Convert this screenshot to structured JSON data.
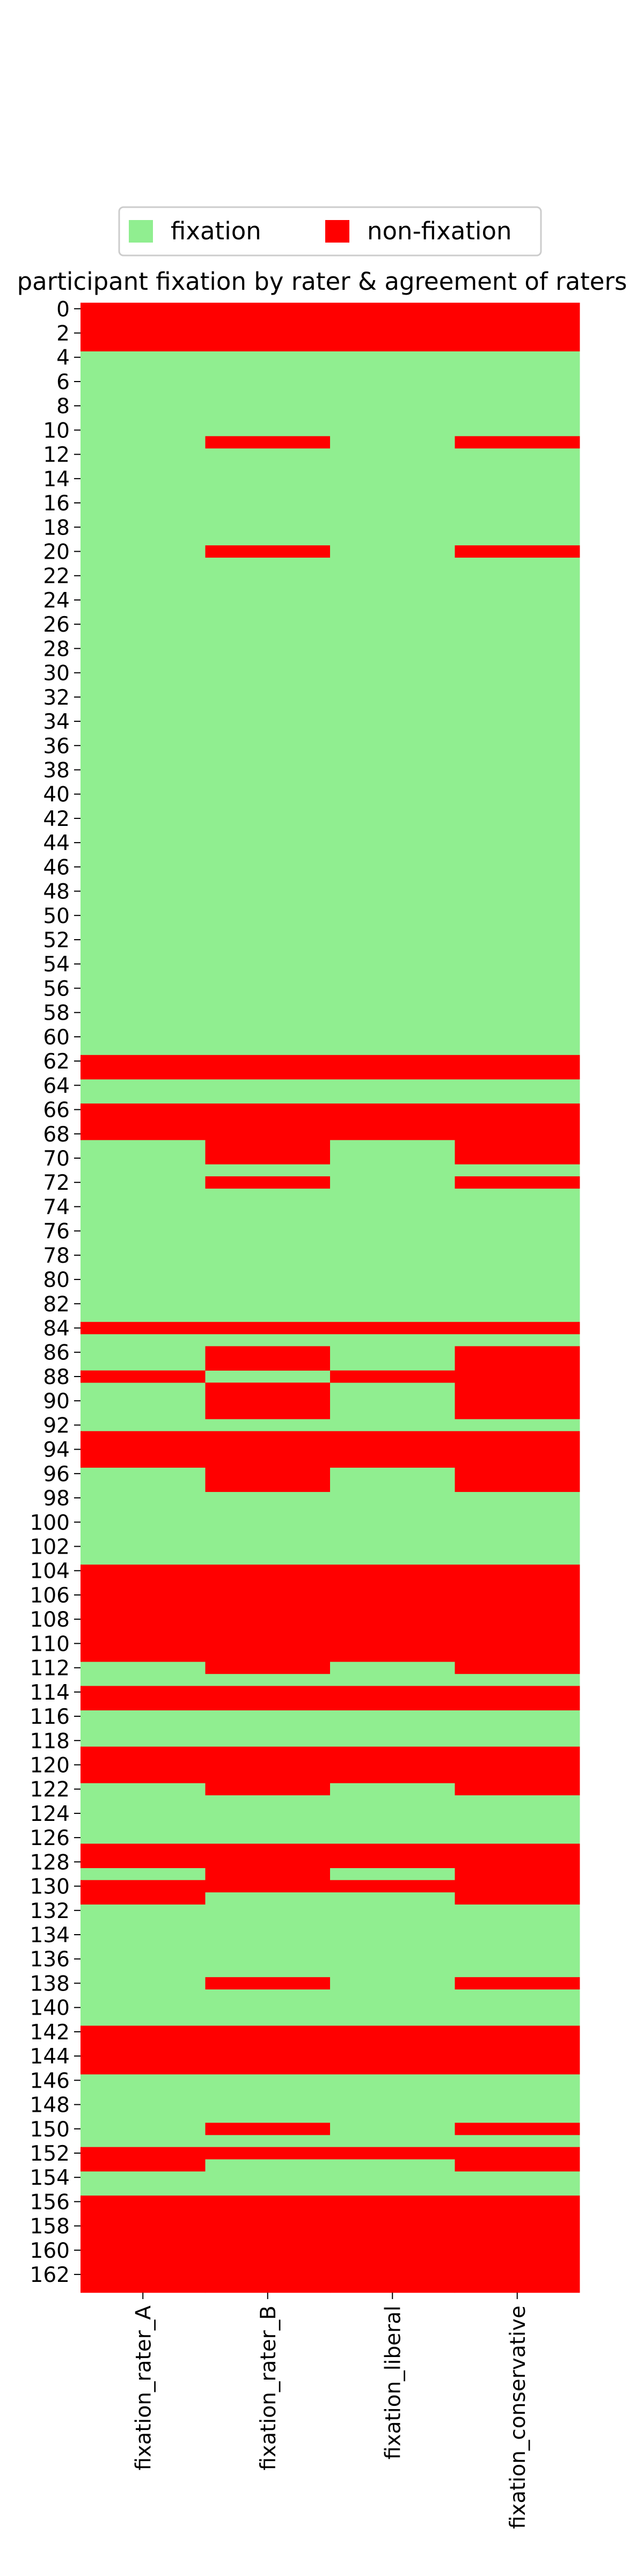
{
  "chart_data": {
    "type": "heatmap",
    "title": "participant fixation by rater & agreement of raters",
    "columns": [
      "fixation_rater_A",
      "fixation_rater_B",
      "fixation_liberal",
      "fixation_conservative"
    ],
    "row_labels_shown": [
      "0",
      "2",
      "4",
      "6",
      "8",
      "10",
      "12",
      "14",
      "16",
      "18",
      "20",
      "22",
      "24",
      "26",
      "28",
      "30",
      "32",
      "34",
      "36",
      "38",
      "40",
      "42",
      "44",
      "46",
      "48",
      "50",
      "52",
      "54",
      "56",
      "58",
      "60",
      "62",
      "64",
      "66",
      "68",
      "70",
      "72",
      "74",
      "76",
      "78",
      "80",
      "82",
      "84",
      "86",
      "88",
      "90",
      "92",
      "94",
      "96",
      "98",
      "100",
      "102",
      "104",
      "106",
      "108",
      "110",
      "112",
      "114",
      "116",
      "118",
      "120",
      "122",
      "124",
      "126",
      "128",
      "130",
      "132",
      "134",
      "136",
      "138",
      "140",
      "142",
      "144",
      "146",
      "148",
      "150",
      "152",
      "154",
      "156",
      "158",
      "160",
      "162"
    ],
    "n_rows": 164,
    "legend": {
      "placement": "top-center",
      "entries": [
        {
          "label": "fixation",
          "color": "#90ee90"
        },
        {
          "label": "non-fixation",
          "color": "#ff0000"
        }
      ]
    },
    "colors": {
      "fixation": "#90ee90",
      "non_fixation": "#ff0000"
    },
    "non_fixation_rows": {
      "fixation_rater_A": [
        0,
        1,
        2,
        3,
        62,
        63,
        66,
        67,
        68,
        84,
        88,
        93,
        94,
        95,
        104,
        105,
        106,
        107,
        108,
        109,
        110,
        111,
        114,
        115,
        119,
        120,
        121,
        127,
        128,
        130,
        131,
        142,
        143,
        144,
        145,
        152,
        153,
        156,
        157,
        158,
        159,
        160,
        161,
        162,
        163
      ],
      "fixation_rater_B": [
        0,
        1,
        2,
        3,
        11,
        20,
        62,
        63,
        66,
        67,
        68,
        69,
        70,
        72,
        84,
        86,
        87,
        89,
        90,
        91,
        93,
        94,
        95,
        96,
        97,
        104,
        105,
        106,
        107,
        108,
        109,
        110,
        111,
        112,
        114,
        115,
        119,
        120,
        121,
        122,
        127,
        128,
        129,
        130,
        138,
        142,
        143,
        144,
        145,
        150,
        152,
        156,
        157,
        158,
        159,
        160,
        161,
        162,
        163
      ],
      "fixation_liberal": [
        0,
        1,
        2,
        3,
        62,
        63,
        66,
        67,
        68,
        84,
        88,
        93,
        94,
        95,
        104,
        105,
        106,
        107,
        108,
        109,
        110,
        111,
        114,
        115,
        119,
        120,
        121,
        127,
        128,
        130,
        142,
        143,
        144,
        145,
        152,
        156,
        157,
        158,
        159,
        160,
        161,
        162,
        163
      ],
      "fixation_conservative": [
        0,
        1,
        2,
        3,
        11,
        20,
        62,
        63,
        66,
        67,
        68,
        69,
        70,
        72,
        84,
        86,
        87,
        88,
        89,
        90,
        91,
        93,
        94,
        95,
        96,
        97,
        104,
        105,
        106,
        107,
        108,
        109,
        110,
        111,
        112,
        114,
        115,
        119,
        120,
        121,
        122,
        127,
        128,
        129,
        130,
        131,
        138,
        142,
        143,
        144,
        145,
        150,
        152,
        153,
        156,
        157,
        158,
        159,
        160,
        161,
        162,
        163
      ]
    }
  }
}
